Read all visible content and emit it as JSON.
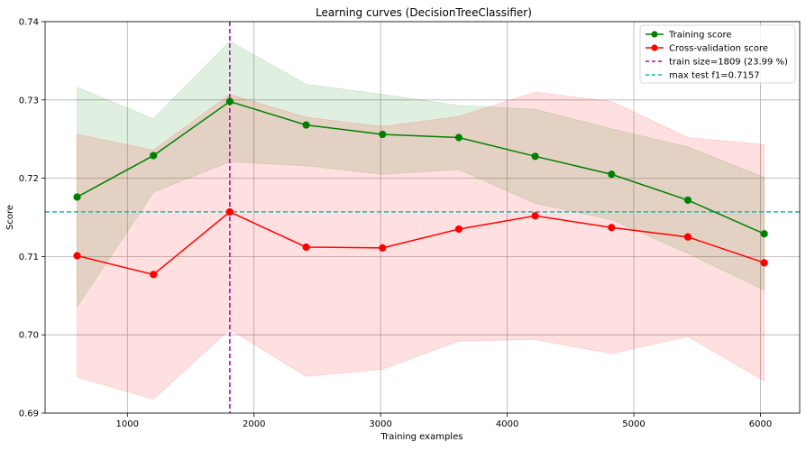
{
  "chart_data": {
    "type": "line",
    "title": "Learning curves (DecisionTreeClassifier)",
    "xlabel": "Training examples",
    "ylabel": "Score",
    "xlim": [
      350,
      6310
    ],
    "ylim": [
      0.69,
      0.74
    ],
    "xticks": [
      1000,
      2000,
      3000,
      4000,
      5000,
      6000
    ],
    "yticks": [
      0.69,
      0.7,
      0.71,
      0.72,
      0.73,
      0.74
    ],
    "ytick_labels": [
      "0.69",
      "0.70",
      "0.71",
      "0.72",
      "0.73",
      "0.74"
    ],
    "grid": true,
    "legend_position": "top-right",
    "x": [
      603,
      1206,
      1809,
      2412,
      3015,
      3618,
      4221,
      4824,
      5427,
      6030
    ],
    "series": [
      {
        "name": "Training score",
        "color": "#008000",
        "marker": "circle",
        "values": [
          0.7176,
          0.7229,
          0.7298,
          0.7268,
          0.7256,
          0.7252,
          0.7228,
          0.7205,
          0.7172,
          0.7129
        ],
        "band_upper": [
          0.7316,
          0.7276,
          0.7375,
          0.732,
          0.7307,
          0.7293,
          0.7288,
          0.7263,
          0.724,
          0.7201
        ],
        "band_lower": [
          0.7036,
          0.7182,
          0.7221,
          0.7216,
          0.7205,
          0.7211,
          0.7168,
          0.7147,
          0.7104,
          0.7057
        ],
        "band_color": "#008000"
      },
      {
        "name": "Cross-validation score",
        "color": "#ff0000",
        "marker": "circle",
        "values": [
          0.7101,
          0.7077,
          0.7157,
          0.7112,
          0.7111,
          0.7135,
          0.7152,
          0.7137,
          0.7125,
          0.7092
        ],
        "band_upper": [
          0.7256,
          0.7236,
          0.7307,
          0.7278,
          0.7266,
          0.7279,
          0.731,
          0.7298,
          0.7252,
          0.7243
        ],
        "band_lower": [
          0.6946,
          0.6918,
          0.7007,
          0.6947,
          0.6956,
          0.6992,
          0.6994,
          0.6976,
          0.6998,
          0.6941
        ],
        "band_color": "#ff0000"
      }
    ],
    "reference_lines": [
      {
        "name": "train size=1809 (23.99 %)",
        "orientation": "vertical",
        "value": 1809,
        "color": "#aa00aa",
        "style": "dashed"
      },
      {
        "name": "max test f1=0.7157",
        "orientation": "horizontal",
        "value": 0.7157,
        "color": "#11bbbb",
        "style": "dashed"
      }
    ]
  }
}
